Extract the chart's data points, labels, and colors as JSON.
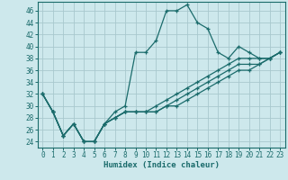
{
  "xlabel": "Humidex (Indice chaleur)",
  "background_color": "#cde8ec",
  "grid_color": "#a8c8ce",
  "line_color": "#1a6b6b",
  "xlim": [
    -0.5,
    23.5
  ],
  "ylim": [
    23,
    47.5
  ],
  "yticks": [
    24,
    26,
    28,
    30,
    32,
    34,
    36,
    38,
    40,
    42,
    44,
    46
  ],
  "xticks": [
    0,
    1,
    2,
    3,
    4,
    5,
    6,
    7,
    8,
    9,
    10,
    11,
    12,
    13,
    14,
    15,
    16,
    17,
    18,
    19,
    20,
    21,
    22,
    23
  ],
  "series": [
    [
      32,
      29,
      25,
      27,
      24,
      24,
      27,
      29,
      30,
      39,
      39,
      41,
      46,
      46,
      47,
      44,
      43,
      39,
      38,
      40,
      39,
      38,
      38,
      39
    ],
    [
      32,
      29,
      25,
      27,
      24,
      24,
      27,
      28,
      29,
      29,
      29,
      30,
      31,
      32,
      33,
      34,
      35,
      36,
      37,
      38,
      38,
      38,
      38,
      39
    ],
    [
      32,
      29,
      25,
      27,
      24,
      24,
      27,
      28,
      29,
      29,
      29,
      29,
      30,
      31,
      32,
      33,
      34,
      35,
      36,
      37,
      37,
      37,
      38,
      39
    ],
    [
      32,
      29,
      25,
      27,
      24,
      24,
      27,
      28,
      29,
      29,
      29,
      29,
      30,
      30,
      31,
      32,
      33,
      34,
      35,
      36,
      36,
      37,
      38,
      39
    ]
  ],
  "marker": "+",
  "markersize": 3.5,
  "linewidth": 0.9,
  "tick_fontsize": 5.5,
  "xlabel_fontsize": 6.5
}
